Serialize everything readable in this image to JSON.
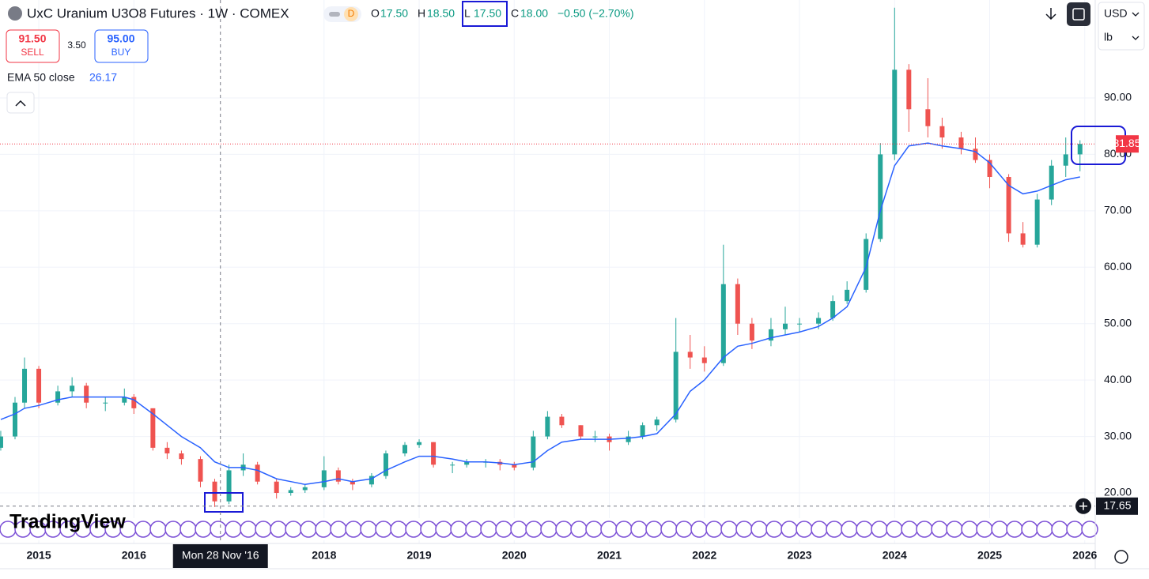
{
  "header": {
    "title": "UxC Uranium U3O8 Futures · 1W · COMEX",
    "session_badge": "D",
    "ohlc": [
      {
        "key": "O",
        "value": "17.50"
      },
      {
        "key": "H",
        "value": "18.50"
      },
      {
        "key": "L",
        "value": "17.50"
      },
      {
        "key": "C",
        "value": "18.00"
      }
    ],
    "change": "−0.50 (−2.70%)",
    "sell": {
      "price": "91.50",
      "label": "SELL"
    },
    "spread": "3.50",
    "buy": {
      "price": "95.00",
      "label": "BUY"
    },
    "currency": "USD",
    "unit": "lb",
    "logo": "TradingView"
  },
  "chart_data": {
    "type": "candlestick",
    "up_color": "#26a69a",
    "down_color": "#ef5350",
    "x": [
      2014.6,
      2014.75,
      2014.85,
      2015.0,
      2015.2,
      2015.35,
      2015.5,
      2015.7,
      2015.9,
      2016.0,
      2016.2,
      2016.35,
      2016.5,
      2016.7,
      2016.85,
      2017.0,
      2017.15,
      2017.3,
      2017.5,
      2017.65,
      2017.8,
      2018.0,
      2018.15,
      2018.3,
      2018.5,
      2018.65,
      2018.85,
      2019.0,
      2019.15,
      2019.35,
      2019.5,
      2019.7,
      2019.85,
      2020.0,
      2020.2,
      2020.35,
      2020.5,
      2020.7,
      2020.85,
      2021.0,
      2021.2,
      2021.35,
      2021.5,
      2021.7,
      2021.85,
      2022.0,
      2022.2,
      2022.35,
      2022.5,
      2022.7,
      2022.85,
      2023.0,
      2023.2,
      2023.35,
      2023.5,
      2023.7,
      2023.85,
      2024.0,
      2024.15,
      2024.35,
      2024.5,
      2024.7,
      2024.85,
      2025.0,
      2025.2,
      2025.35,
      2025.5,
      2025.65,
      2025.8,
      2025.95
    ],
    "open": [
      28,
      30,
      36,
      42,
      36,
      38,
      39,
      36,
      36,
      37,
      35,
      28,
      27,
      26,
      22,
      18.5,
      24,
      25,
      22,
      20,
      20.5,
      21,
      24,
      22,
      21.5,
      23,
      27,
      28.5,
      29,
      25,
      25,
      25.5,
      25.5,
      25,
      24.5,
      30,
      33.5,
      32,
      30,
      30,
      29,
      30,
      32,
      33,
      45,
      44,
      43,
      57,
      50,
      47,
      49,
      50,
      50,
      51,
      54,
      56,
      65,
      80,
      95,
      88,
      85,
      83,
      81,
      79,
      76,
      66,
      64,
      72,
      78,
      80
    ],
    "high": [
      31,
      37,
      44,
      42.5,
      39,
      40.5,
      39.5,
      37,
      38.5,
      37.5,
      35,
      29,
      27.5,
      26.5,
      22.5,
      25,
      27,
      25.5,
      22.5,
      21,
      21.5,
      26.5,
      24.5,
      22.5,
      23.5,
      27.5,
      29,
      29.5,
      29,
      25.5,
      26,
      26,
      26,
      25.5,
      31,
      34.5,
      34,
      32,
      31,
      30.5,
      31,
      32.5,
      33.5,
      51,
      48,
      46,
      64,
      58,
      51,
      51,
      53,
      51,
      52,
      55,
      57.5,
      66,
      82,
      106,
      96,
      93.5,
      86.5,
      84,
      83,
      80,
      76.5,
      68,
      73,
      79,
      83,
      82.5
    ],
    "low": [
      27.5,
      29.5,
      35,
      35,
      35.5,
      37,
      35,
      34.5,
      35.5,
      34,
      27.5,
      26,
      25,
      21,
      17.5,
      18,
      23,
      21.5,
      19,
      19.5,
      20,
      20.5,
      21.5,
      20.5,
      21,
      22.5,
      26.5,
      28,
      24.5,
      23.5,
      24.5,
      24.5,
      24,
      24,
      24,
      29.5,
      31.5,
      29.5,
      29,
      27.5,
      28.5,
      29.5,
      31,
      32.5,
      42,
      41.5,
      42.5,
      48,
      45.5,
      46,
      48,
      48.5,
      49,
      50.5,
      53.5,
      55.5,
      64.5,
      79,
      84,
      83,
      81,
      80,
      78.5,
      74,
      64.5,
      63.5,
      63.5,
      71,
      76,
      77
    ],
    "close": [
      30,
      36,
      42,
      36,
      38,
      39,
      36,
      36,
      37,
      35,
      28,
      27,
      26,
      22,
      18.5,
      24,
      25,
      22,
      20,
      20.5,
      21,
      24,
      22,
      21.5,
      23,
      27,
      28.5,
      29,
      25,
      25,
      25.5,
      25.5,
      25,
      24.5,
      30,
      33.5,
      32,
      30,
      30,
      29,
      30,
      32,
      33,
      45,
      44,
      43,
      57,
      50,
      47,
      49,
      50,
      50,
      51,
      54,
      56,
      65,
      80,
      95,
      88,
      85,
      83,
      81,
      79,
      76,
      66,
      64,
      72,
      78,
      80,
      81.85
    ],
    "ema": {
      "name": "EMA 50 close",
      "display_value": "26.17",
      "color": "#2962ff",
      "values": [
        33,
        34,
        35,
        35.5,
        36.5,
        37,
        37,
        37,
        37,
        36.5,
        34,
        32,
        30,
        28,
        25.5,
        24.5,
        24.5,
        24,
        22.5,
        22,
        21.5,
        22,
        22.5,
        22,
        22.5,
        24,
        25.5,
        26.5,
        26.5,
        26,
        25.5,
        25.5,
        25.3,
        25,
        25.5,
        27.5,
        29,
        29.5,
        29.5,
        29.5,
        29.7,
        30,
        30.5,
        34,
        38,
        40,
        44,
        46,
        46.5,
        47.5,
        48,
        48.5,
        49.5,
        51,
        53,
        60,
        70,
        78,
        81.5,
        82,
        81.5,
        81,
        80.5,
        78.5,
        74.5,
        73,
        73.5,
        74.5,
        75.5,
        76
      ]
    },
    "xlim": [
      2014.592,
      2026.11
    ],
    "xticks": [
      2015,
      2016,
      2018,
      2019,
      2020,
      2021,
      2022,
      2023,
      2024,
      2025,
      2026
    ],
    "ylim": [
      11.04,
      107.36
    ],
    "yticks": [
      {
        "value": 20,
        "label": "20.00"
      },
      {
        "value": 30,
        "label": "30.00"
      },
      {
        "value": 40,
        "label": "40.00"
      },
      {
        "value": 50,
        "label": "50.00"
      },
      {
        "value": 60,
        "label": "60.00"
      },
      {
        "value": 70,
        "label": "70.00"
      },
      {
        "value": 80,
        "label": "80.00"
      },
      {
        "value": 90,
        "label": "90.00"
      }
    ],
    "grid": true,
    "last_price": 81.85,
    "last_price_color": "#f23645",
    "crosshair": {
      "x": 2016.91,
      "x_label": "Mon 28 Nov '16",
      "y": 17.65
    }
  }
}
